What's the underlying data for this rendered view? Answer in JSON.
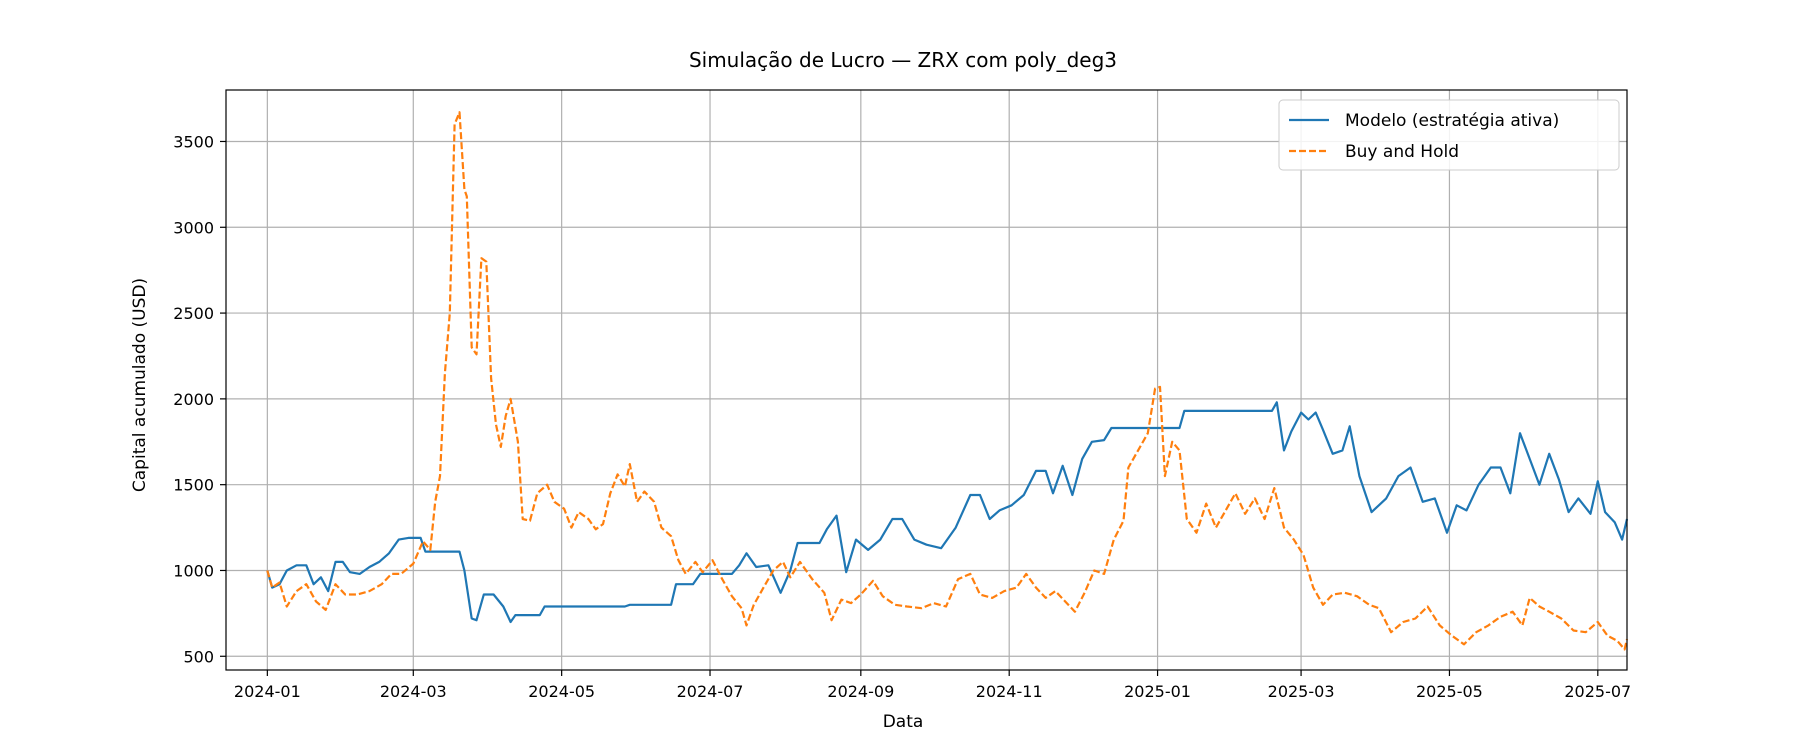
{
  "chart_data": {
    "type": "line",
    "title": "Simulação de Lucro — ZRX com poly_deg3",
    "xlabel": "Data",
    "ylabel": "Capital acumulado (USD)",
    "xlim": [
      "2023-12-15",
      "2025-07-13"
    ],
    "ylim": [
      420,
      3800
    ],
    "x_ticks": [
      "2024-01",
      "2024-03",
      "2024-05",
      "2024-07",
      "2024-09",
      "2024-11",
      "2025-01",
      "2025-03",
      "2025-05",
      "2025-07"
    ],
    "y_ticks": [
      500,
      1000,
      1500,
      2000,
      2500,
      3000,
      3500
    ],
    "grid": true,
    "legend_position": "top-right",
    "series": [
      {
        "name": "Modelo (estratégia ativa)",
        "color": "#1f77b4",
        "style": "solid",
        "points": [
          [
            "2024-01-01",
            1000
          ],
          [
            "2024-01-03",
            900
          ],
          [
            "2024-01-06",
            920
          ],
          [
            "2024-01-09",
            1000
          ],
          [
            "2024-01-13",
            1030
          ],
          [
            "2024-01-17",
            1030
          ],
          [
            "2024-01-20",
            920
          ],
          [
            "2024-01-23",
            960
          ],
          [
            "2024-01-26",
            880
          ],
          [
            "2024-01-29",
            1050
          ],
          [
            "2024-02-01",
            1050
          ],
          [
            "2024-02-04",
            990
          ],
          [
            "2024-02-08",
            980
          ],
          [
            "2024-02-12",
            1020
          ],
          [
            "2024-02-16",
            1050
          ],
          [
            "2024-02-20",
            1100
          ],
          [
            "2024-02-24",
            1180
          ],
          [
            "2024-02-28",
            1190
          ],
          [
            "2024-03-04",
            1190
          ],
          [
            "2024-03-06",
            1110
          ],
          [
            "2024-03-20",
            1110
          ],
          [
            "2024-03-22",
            1000
          ],
          [
            "2024-03-25",
            720
          ],
          [
            "2024-03-27",
            710
          ],
          [
            "2024-03-30",
            860
          ],
          [
            "2024-04-03",
            860
          ],
          [
            "2024-04-07",
            790
          ],
          [
            "2024-04-10",
            700
          ],
          [
            "2024-04-12",
            740
          ],
          [
            "2024-04-22",
            740
          ],
          [
            "2024-04-24",
            790
          ],
          [
            "2024-05-27",
            790
          ],
          [
            "2024-05-29",
            800
          ],
          [
            "2024-06-15",
            800
          ],
          [
            "2024-06-17",
            920
          ],
          [
            "2024-06-24",
            920
          ],
          [
            "2024-06-27",
            980
          ],
          [
            "2024-07-10",
            980
          ],
          [
            "2024-07-13",
            1030
          ],
          [
            "2024-07-16",
            1100
          ],
          [
            "2024-07-20",
            1020
          ],
          [
            "2024-07-25",
            1030
          ],
          [
            "2024-07-30",
            870
          ],
          [
            "2024-08-03",
            1000
          ],
          [
            "2024-08-06",
            1160
          ],
          [
            "2024-08-15",
            1160
          ],
          [
            "2024-08-18",
            1240
          ],
          [
            "2024-08-22",
            1320
          ],
          [
            "2024-08-26",
            990
          ],
          [
            "2024-08-30",
            1180
          ],
          [
            "2024-09-04",
            1120
          ],
          [
            "2024-09-09",
            1180
          ],
          [
            "2024-09-14",
            1300
          ],
          [
            "2024-09-18",
            1300
          ],
          [
            "2024-09-23",
            1180
          ],
          [
            "2024-09-28",
            1150
          ],
          [
            "2024-10-04",
            1130
          ],
          [
            "2024-10-10",
            1250
          ],
          [
            "2024-10-16",
            1440
          ],
          [
            "2024-10-20",
            1440
          ],
          [
            "2024-10-24",
            1300
          ],
          [
            "2024-10-28",
            1350
          ],
          [
            "2024-11-02",
            1380
          ],
          [
            "2024-11-07",
            1440
          ],
          [
            "2024-11-12",
            1580
          ],
          [
            "2024-11-16",
            1580
          ],
          [
            "2024-11-19",
            1450
          ],
          [
            "2024-11-23",
            1610
          ],
          [
            "2024-11-27",
            1440
          ],
          [
            "2024-12-01",
            1650
          ],
          [
            "2024-12-05",
            1750
          ],
          [
            "2024-12-10",
            1760
          ],
          [
            "2024-12-13",
            1830
          ],
          [
            "2025-01-10",
            1830
          ],
          [
            "2025-01-12",
            1930
          ],
          [
            "2025-02-17",
            1930
          ],
          [
            "2025-02-19",
            1980
          ],
          [
            "2025-02-22",
            1700
          ],
          [
            "2025-02-25",
            1810
          ],
          [
            "2025-03-01",
            1920
          ],
          [
            "2025-03-04",
            1880
          ],
          [
            "2025-03-07",
            1920
          ],
          [
            "2025-03-10",
            1820
          ],
          [
            "2025-03-14",
            1680
          ],
          [
            "2025-03-18",
            1700
          ],
          [
            "2025-03-21",
            1840
          ],
          [
            "2025-03-25",
            1550
          ],
          [
            "2025-03-30",
            1340
          ],
          [
            "2025-04-05",
            1420
          ],
          [
            "2025-04-10",
            1550
          ],
          [
            "2025-04-15",
            1600
          ],
          [
            "2025-04-20",
            1400
          ],
          [
            "2025-04-25",
            1420
          ],
          [
            "2025-04-30",
            1220
          ],
          [
            "2025-05-04",
            1380
          ],
          [
            "2025-05-08",
            1350
          ],
          [
            "2025-05-13",
            1500
          ],
          [
            "2025-05-18",
            1600
          ],
          [
            "2025-05-22",
            1600
          ],
          [
            "2025-05-26",
            1450
          ],
          [
            "2025-05-30",
            1800
          ],
          [
            "2025-06-03",
            1650
          ],
          [
            "2025-06-07",
            1500
          ],
          [
            "2025-06-11",
            1680
          ],
          [
            "2025-06-15",
            1530
          ],
          [
            "2025-06-19",
            1340
          ],
          [
            "2025-06-23",
            1420
          ],
          [
            "2025-06-28",
            1330
          ],
          [
            "2025-07-01",
            1520
          ],
          [
            "2025-07-04",
            1340
          ],
          [
            "2025-07-08",
            1280
          ],
          [
            "2025-07-11",
            1180
          ],
          [
            "2025-07-13",
            1300
          ]
        ]
      },
      {
        "name": "Buy and Hold",
        "color": "#ff7f0e",
        "style": "dashed",
        "points": [
          [
            "2024-01-01",
            1000
          ],
          [
            "2024-01-03",
            900
          ],
          [
            "2024-01-06",
            930
          ],
          [
            "2024-01-09",
            790
          ],
          [
            "2024-01-13",
            880
          ],
          [
            "2024-01-17",
            920
          ],
          [
            "2024-01-21",
            820
          ],
          [
            "2024-01-25",
            770
          ],
          [
            "2024-01-29",
            920
          ],
          [
            "2024-02-02",
            860
          ],
          [
            "2024-02-07",
            860
          ],
          [
            "2024-02-12",
            880
          ],
          [
            "2024-02-17",
            920
          ],
          [
            "2024-02-21",
            980
          ],
          [
            "2024-02-25",
            980
          ],
          [
            "2024-03-01",
            1040
          ],
          [
            "2024-03-05",
            1170
          ],
          [
            "2024-03-08",
            1120
          ],
          [
            "2024-03-10",
            1400
          ],
          [
            "2024-03-12",
            1550
          ],
          [
            "2024-03-14",
            2150
          ],
          [
            "2024-03-16",
            2500
          ],
          [
            "2024-03-18",
            3600
          ],
          [
            "2024-03-20",
            3670
          ],
          [
            "2024-03-22",
            3220
          ],
          [
            "2024-03-23",
            3180
          ],
          [
            "2024-03-25",
            2300
          ],
          [
            "2024-03-27",
            2260
          ],
          [
            "2024-03-29",
            2820
          ],
          [
            "2024-03-31",
            2800
          ],
          [
            "2024-04-02",
            2120
          ],
          [
            "2024-04-04",
            1850
          ],
          [
            "2024-04-06",
            1720
          ],
          [
            "2024-04-08",
            1900
          ],
          [
            "2024-04-10",
            2000
          ],
          [
            "2024-04-13",
            1750
          ],
          [
            "2024-04-15",
            1300
          ],
          [
            "2024-04-18",
            1290
          ],
          [
            "2024-04-21",
            1450
          ],
          [
            "2024-04-25",
            1500
          ],
          [
            "2024-04-28",
            1400
          ],
          [
            "2024-05-02",
            1360
          ],
          [
            "2024-05-05",
            1250
          ],
          [
            "2024-05-08",
            1340
          ],
          [
            "2024-05-12",
            1300
          ],
          [
            "2024-05-15",
            1240
          ],
          [
            "2024-05-18",
            1270
          ],
          [
            "2024-05-21",
            1450
          ],
          [
            "2024-05-24",
            1560
          ],
          [
            "2024-05-27",
            1490
          ],
          [
            "2024-05-29",
            1620
          ],
          [
            "2024-06-01",
            1400
          ],
          [
            "2024-06-04",
            1460
          ],
          [
            "2024-06-08",
            1400
          ],
          [
            "2024-06-11",
            1250
          ],
          [
            "2024-06-15",
            1200
          ],
          [
            "2024-06-18",
            1060
          ],
          [
            "2024-06-21",
            980
          ],
          [
            "2024-06-25",
            1050
          ],
          [
            "2024-06-28",
            990
          ],
          [
            "2024-07-02",
            1060
          ],
          [
            "2024-07-06",
            950
          ],
          [
            "2024-07-10",
            850
          ],
          [
            "2024-07-14",
            780
          ],
          [
            "2024-07-16",
            680
          ],
          [
            "2024-07-19",
            800
          ],
          [
            "2024-07-23",
            900
          ],
          [
            "2024-07-27",
            1000
          ],
          [
            "2024-07-31",
            1050
          ],
          [
            "2024-08-03",
            960
          ],
          [
            "2024-08-07",
            1050
          ],
          [
            "2024-08-12",
            950
          ],
          [
            "2024-08-17",
            870
          ],
          [
            "2024-08-20",
            710
          ],
          [
            "2024-08-24",
            830
          ],
          [
            "2024-08-28",
            810
          ],
          [
            "2024-09-01",
            860
          ],
          [
            "2024-09-06",
            940
          ],
          [
            "2024-09-10",
            850
          ],
          [
            "2024-09-15",
            800
          ],
          [
            "2024-09-20",
            790
          ],
          [
            "2024-09-26",
            780
          ],
          [
            "2024-10-01",
            810
          ],
          [
            "2024-10-06",
            790
          ],
          [
            "2024-10-11",
            950
          ],
          [
            "2024-10-16",
            980
          ],
          [
            "2024-10-20",
            860
          ],
          [
            "2024-10-25",
            840
          ],
          [
            "2024-10-30",
            880
          ],
          [
            "2024-11-04",
            900
          ],
          [
            "2024-11-08",
            980
          ],
          [
            "2024-11-12",
            900
          ],
          [
            "2024-11-16",
            840
          ],
          [
            "2024-11-20",
            880
          ],
          [
            "2024-11-24",
            820
          ],
          [
            "2024-11-28",
            760
          ],
          [
            "2024-12-02",
            870
          ],
          [
            "2024-12-06",
            1000
          ],
          [
            "2024-12-10",
            980
          ],
          [
            "2024-12-14",
            1180
          ],
          [
            "2024-12-18",
            1290
          ],
          [
            "2024-12-20",
            1600
          ],
          [
            "2024-12-24",
            1700
          ],
          [
            "2024-12-28",
            1800
          ],
          [
            "2024-12-31",
            2060
          ],
          [
            "2025-01-02",
            2070
          ],
          [
            "2025-01-04",
            1550
          ],
          [
            "2025-01-07",
            1750
          ],
          [
            "2025-01-10",
            1700
          ],
          [
            "2025-01-13",
            1300
          ],
          [
            "2025-01-17",
            1220
          ],
          [
            "2025-01-21",
            1390
          ],
          [
            "2025-01-25",
            1250
          ],
          [
            "2025-01-29",
            1350
          ],
          [
            "2025-02-02",
            1450
          ],
          [
            "2025-02-06",
            1330
          ],
          [
            "2025-02-10",
            1420
          ],
          [
            "2025-02-14",
            1300
          ],
          [
            "2025-02-18",
            1480
          ],
          [
            "2025-02-22",
            1250
          ],
          [
            "2025-02-26",
            1180
          ],
          [
            "2025-03-02",
            1090
          ],
          [
            "2025-03-06",
            900
          ],
          [
            "2025-03-10",
            800
          ],
          [
            "2025-03-14",
            860
          ],
          [
            "2025-03-19",
            870
          ],
          [
            "2025-03-24",
            850
          ],
          [
            "2025-03-29",
            800
          ],
          [
            "2025-04-02",
            780
          ],
          [
            "2025-04-07",
            640
          ],
          [
            "2025-04-12",
            700
          ],
          [
            "2025-04-17",
            720
          ],
          [
            "2025-04-22",
            790
          ],
          [
            "2025-04-27",
            680
          ],
          [
            "2025-05-02",
            620
          ],
          [
            "2025-05-07",
            570
          ],
          [
            "2025-05-12",
            640
          ],
          [
            "2025-05-17",
            680
          ],
          [
            "2025-05-22",
            730
          ],
          [
            "2025-05-27",
            760
          ],
          [
            "2025-05-31",
            680
          ],
          [
            "2025-06-03",
            840
          ],
          [
            "2025-06-07",
            790
          ],
          [
            "2025-06-11",
            760
          ],
          [
            "2025-06-16",
            720
          ],
          [
            "2025-06-21",
            650
          ],
          [
            "2025-06-26",
            640
          ],
          [
            "2025-07-01",
            700
          ],
          [
            "2025-07-05",
            620
          ],
          [
            "2025-07-09",
            590
          ],
          [
            "2025-07-12",
            540
          ],
          [
            "2025-07-13",
            600
          ]
        ]
      }
    ]
  }
}
